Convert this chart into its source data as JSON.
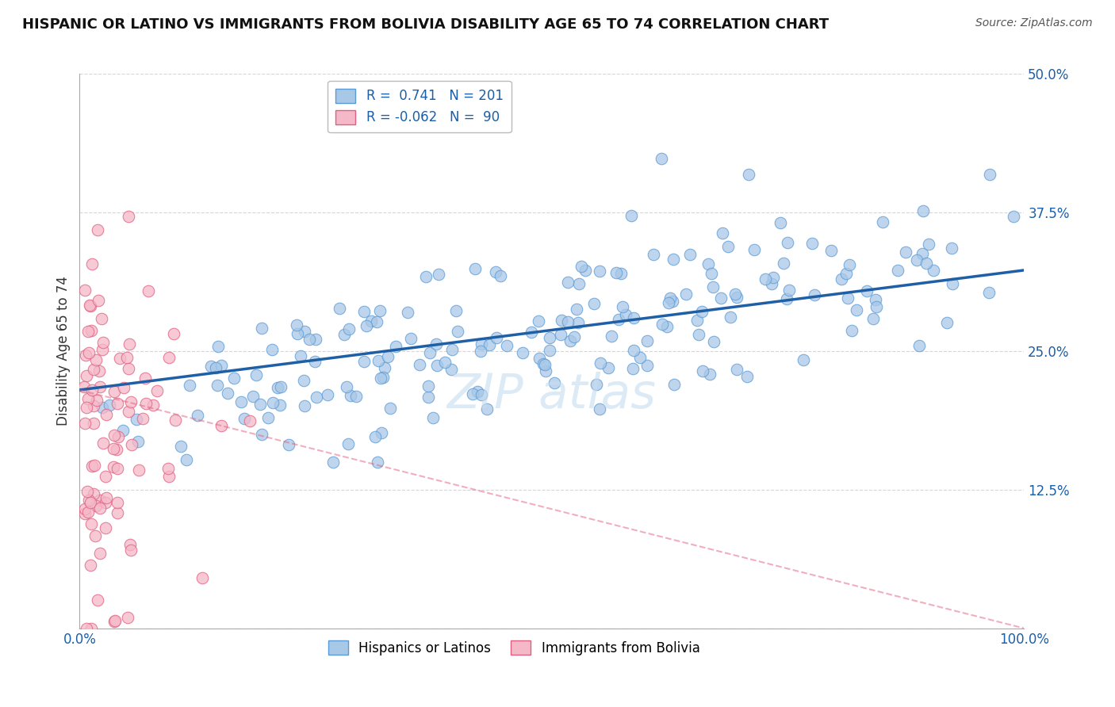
{
  "title": "HISPANIC OR LATINO VS IMMIGRANTS FROM BOLIVIA DISABILITY AGE 65 TO 74 CORRELATION CHART",
  "source": "Source: ZipAtlas.com",
  "ylabel": "Disability Age 65 to 74",
  "r_blue": 0.741,
  "n_blue": 201,
  "r_pink": -0.062,
  "n_pink": 90,
  "xlim": [
    0.0,
    1.0
  ],
  "ylim": [
    0.0,
    0.5
  ],
  "ytick_vals": [
    0.0,
    0.125,
    0.25,
    0.375,
    0.5
  ],
  "ytick_labels": [
    "",
    "12.5%",
    "25.0%",
    "37.5%",
    "50.0%"
  ],
  "xtick_vals": [
    0.0,
    0.25,
    0.5,
    0.75,
    1.0
  ],
  "xtick_labels": [
    "0.0%",
    "",
    "",
    "",
    "100.0%"
  ],
  "color_blue": "#a8c8e8",
  "color_blue_edge": "#5b9bd5",
  "color_blue_line": "#1f5fa6",
  "color_pink": "#f5b8c8",
  "color_pink_edge": "#e06080",
  "color_pink_line": "#e06080",
  "background_color": "#ffffff",
  "title_fontsize": 13,
  "tick_fontsize": 12,
  "blue_line_start_x": 0.0,
  "blue_line_start_y": 0.215,
  "blue_line_end_x": 1.0,
  "blue_line_end_y": 0.323,
  "pink_line_start_x": 0.0,
  "pink_line_start_y": 0.215,
  "pink_line_end_x": 1.0,
  "pink_line_end_y": 0.0
}
